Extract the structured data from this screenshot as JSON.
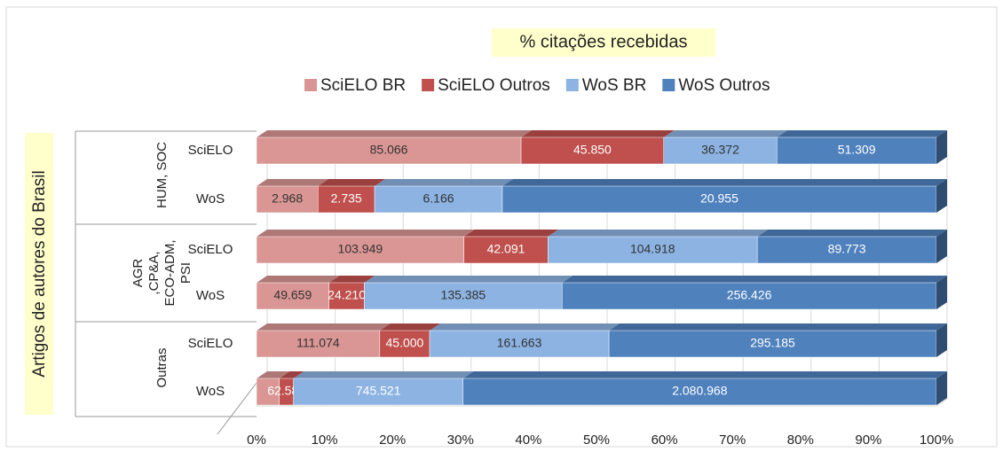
{
  "chart_data": {
    "type": "stacked-bar-100",
    "title": "% citações recebidas",
    "y_label": "Artigos de autores do Brasil",
    "groups": [
      {
        "label": [
          "HUM, SOC"
        ]
      },
      {
        "label": [
          "AGR",
          ",CP&A,",
          "ECO-ADM,",
          "PSI"
        ]
      },
      {
        "label": [
          "Outras"
        ]
      }
    ],
    "categories": [
      "SciELO",
      "WoS",
      "SciELO",
      "WoS",
      "SciELO",
      "WoS"
    ],
    "series": [
      {
        "name": "SciELO BR",
        "color": "#d99694",
        "values": [
          85066,
          2968,
          103949,
          49659,
          111074,
          100000
        ],
        "value_labels": [
          "85.066",
          "2.968",
          "103.949",
          "49.659",
          "111.074",
          null
        ]
      },
      {
        "name": "SciELO Outros",
        "color": "#c0504d",
        "values": [
          45850,
          2735,
          42091,
          24210,
          45000,
          62585
        ],
        "value_labels": [
          "45.850",
          "2.735",
          "42.091",
          "24.210",
          "45.000",
          "62.585"
        ]
      },
      {
        "name": "WoS BR",
        "color": "#8db3e2",
        "values": [
          36372,
          6166,
          104918,
          135385,
          161663,
          745521
        ],
        "value_labels": [
          "36.372",
          "6.166",
          "104.918",
          "135.385",
          "161.663",
          "745.521"
        ]
      },
      {
        "name": "WoS Outros",
        "color": "#4f81bd",
        "values": [
          51309,
          20955,
          89773,
          256426,
          295185,
          2080968
        ],
        "value_labels": [
          "51.309",
          "20.955",
          "89.773",
          "256.426",
          "295.185",
          "2.080.968"
        ]
      }
    ],
    "xlim": [
      0,
      100
    ],
    "xticks": [
      {
        "value": 0,
        "label": "0%"
      },
      {
        "value": 10,
        "label": "10%"
      },
      {
        "value": 20,
        "label": "20%"
      },
      {
        "value": 30,
        "label": "30%"
      },
      {
        "value": 40,
        "label": "40%"
      },
      {
        "value": 50,
        "label": "50%"
      },
      {
        "value": 60,
        "label": "60%"
      },
      {
        "value": 70,
        "label": "70%"
      },
      {
        "value": 80,
        "label": "80%"
      },
      {
        "value": 90,
        "label": "90%"
      },
      {
        "value": 100,
        "label": "100%"
      }
    ],
    "grid": true
  }
}
